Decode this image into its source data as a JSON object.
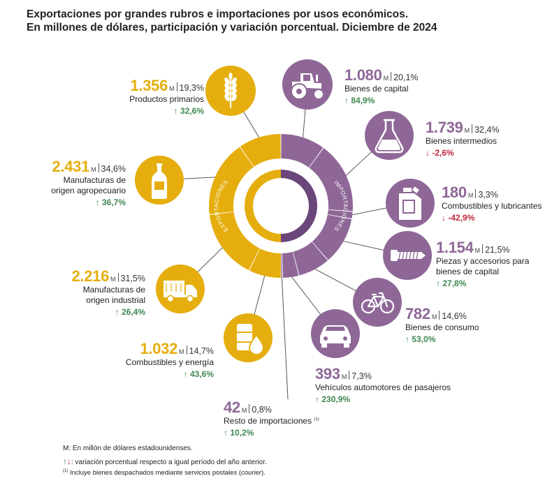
{
  "header": {
    "title_line1": "Exportaciones por grandes rubros e importaciones por usos económicos.",
    "title_line2": "En millones de dólares, participación y variación porcentual. Diciembre de 2024"
  },
  "colors": {
    "exports": "#e5ae0e",
    "imports": "#8e6797",
    "imports_dark": "#6a467b",
    "up": "#3f8750",
    "down": "#c0283c"
  },
  "ring_labels": {
    "exports": "EXPORTACIONES",
    "imports": "IMPORTACIONES"
  },
  "unit": "M",
  "exports": [
    {
      "value": "1.356",
      "pct": "19,3%",
      "label": "Productos primarios",
      "label_line2": "",
      "arrow": "↑",
      "var": "32,6%",
      "icon": "wheat-icon"
    },
    {
      "value": "2.431",
      "pct": "34,6%",
      "label": "Manufacturas de",
      "label_line2": "origen agropecuario",
      "arrow": "↑",
      "var": "36,7%",
      "icon": "bottle-icon"
    },
    {
      "value": "2.216",
      "pct": "31,5%",
      "label": "Manufacturas de",
      "label_line2": "origen industrial",
      "arrow": "↑",
      "var": "26,4%",
      "icon": "truck-icon"
    },
    {
      "value": "1.032",
      "pct": "14,7%",
      "label": "Combustibles y energía",
      "label_line2": "",
      "arrow": "↑",
      "var": "43,6%",
      "icon": "fuel-barrel-icon"
    }
  ],
  "imports": [
    {
      "value": "1.080",
      "pct": "20,1%",
      "label": "Bienes de capital",
      "label_line2": "",
      "arrow": "↑",
      "var": "84,9%",
      "icon": "tractor-icon"
    },
    {
      "value": "1.739",
      "pct": "32,4%",
      "label": "Bienes intermedios",
      "label_line2": "",
      "arrow": "↓",
      "var": "-2,6%",
      "icon": "flask-icon"
    },
    {
      "value": "180",
      "pct": "3,3%",
      "label": "Combustibles y lubricantes",
      "label_line2": "",
      "arrow": "↓",
      "var": "-42,9%",
      "icon": "jerrycan-icon"
    },
    {
      "value": "1.154",
      "pct": "21,5%",
      "label": "Piezas y accesorios para",
      "label_line2": "bienes de capital",
      "arrow": "↑",
      "var": "27,8%",
      "icon": "screw-icon"
    },
    {
      "value": "782",
      "pct": "14,6%",
      "label": "Bienes de consumo",
      "label_line2": "",
      "arrow": "↑",
      "var": "53,0%",
      "icon": "bicycle-icon"
    },
    {
      "value": "393",
      "pct": "7,3%",
      "label": "Vehículos automotores de pasajeros",
      "label_line2": "",
      "arrow": "↑",
      "var": "230,9%",
      "icon": "car-icon"
    },
    {
      "value": "42",
      "pct": "0,8%",
      "label": "Resto de importaciones",
      "label_line2": "",
      "footnote": "(1)",
      "arrow": "↑",
      "var": "10,2%",
      "icon": ""
    }
  ],
  "chart_data": {
    "type": "pie",
    "title": "Exportaciones por grandes rubros e importaciones por usos económicos. En millones de dólares, participación y variación porcentual. Diciembre de 2024",
    "unit": "millones de dólares",
    "series": [
      {
        "name": "Exportaciones",
        "categories": [
          "Productos primarios",
          "Manufacturas de origen agropecuario",
          "Manufacturas de origen industrial",
          "Combustibles y energía"
        ],
        "values": [
          1356,
          2431,
          2216,
          1032
        ],
        "share_pct": [
          19.3,
          34.6,
          31.5,
          14.7
        ],
        "variation_pct": [
          32.6,
          36.7,
          26.4,
          43.6
        ]
      },
      {
        "name": "Importaciones",
        "categories": [
          "Bienes de capital",
          "Bienes intermedios",
          "Combustibles y lubricantes",
          "Piezas y accesorios para bienes de capital",
          "Bienes de consumo",
          "Vehículos automotores de pasajeros",
          "Resto de importaciones"
        ],
        "values": [
          1080,
          1739,
          180,
          1154,
          782,
          393,
          42
        ],
        "share_pct": [
          20.1,
          32.4,
          3.3,
          21.5,
          14.6,
          7.3,
          0.8
        ],
        "variation_pct": [
          84.9,
          -2.6,
          -42.9,
          27.8,
          53.0,
          230.9,
          10.2
        ]
      }
    ]
  },
  "notes": {
    "unit_note": "M: En millón de dólares estadounidenses.",
    "arrow_up": "↑",
    "arrow_down": "↓",
    "variation_note": ": variación porcentual respecto a igual período del año anterior.",
    "footnote_mark": "(1)",
    "footnote_pre": " Incluye bienes despachados mediante servicios postales (",
    "footnote_em": "courier",
    "footnote_post": ")."
  }
}
